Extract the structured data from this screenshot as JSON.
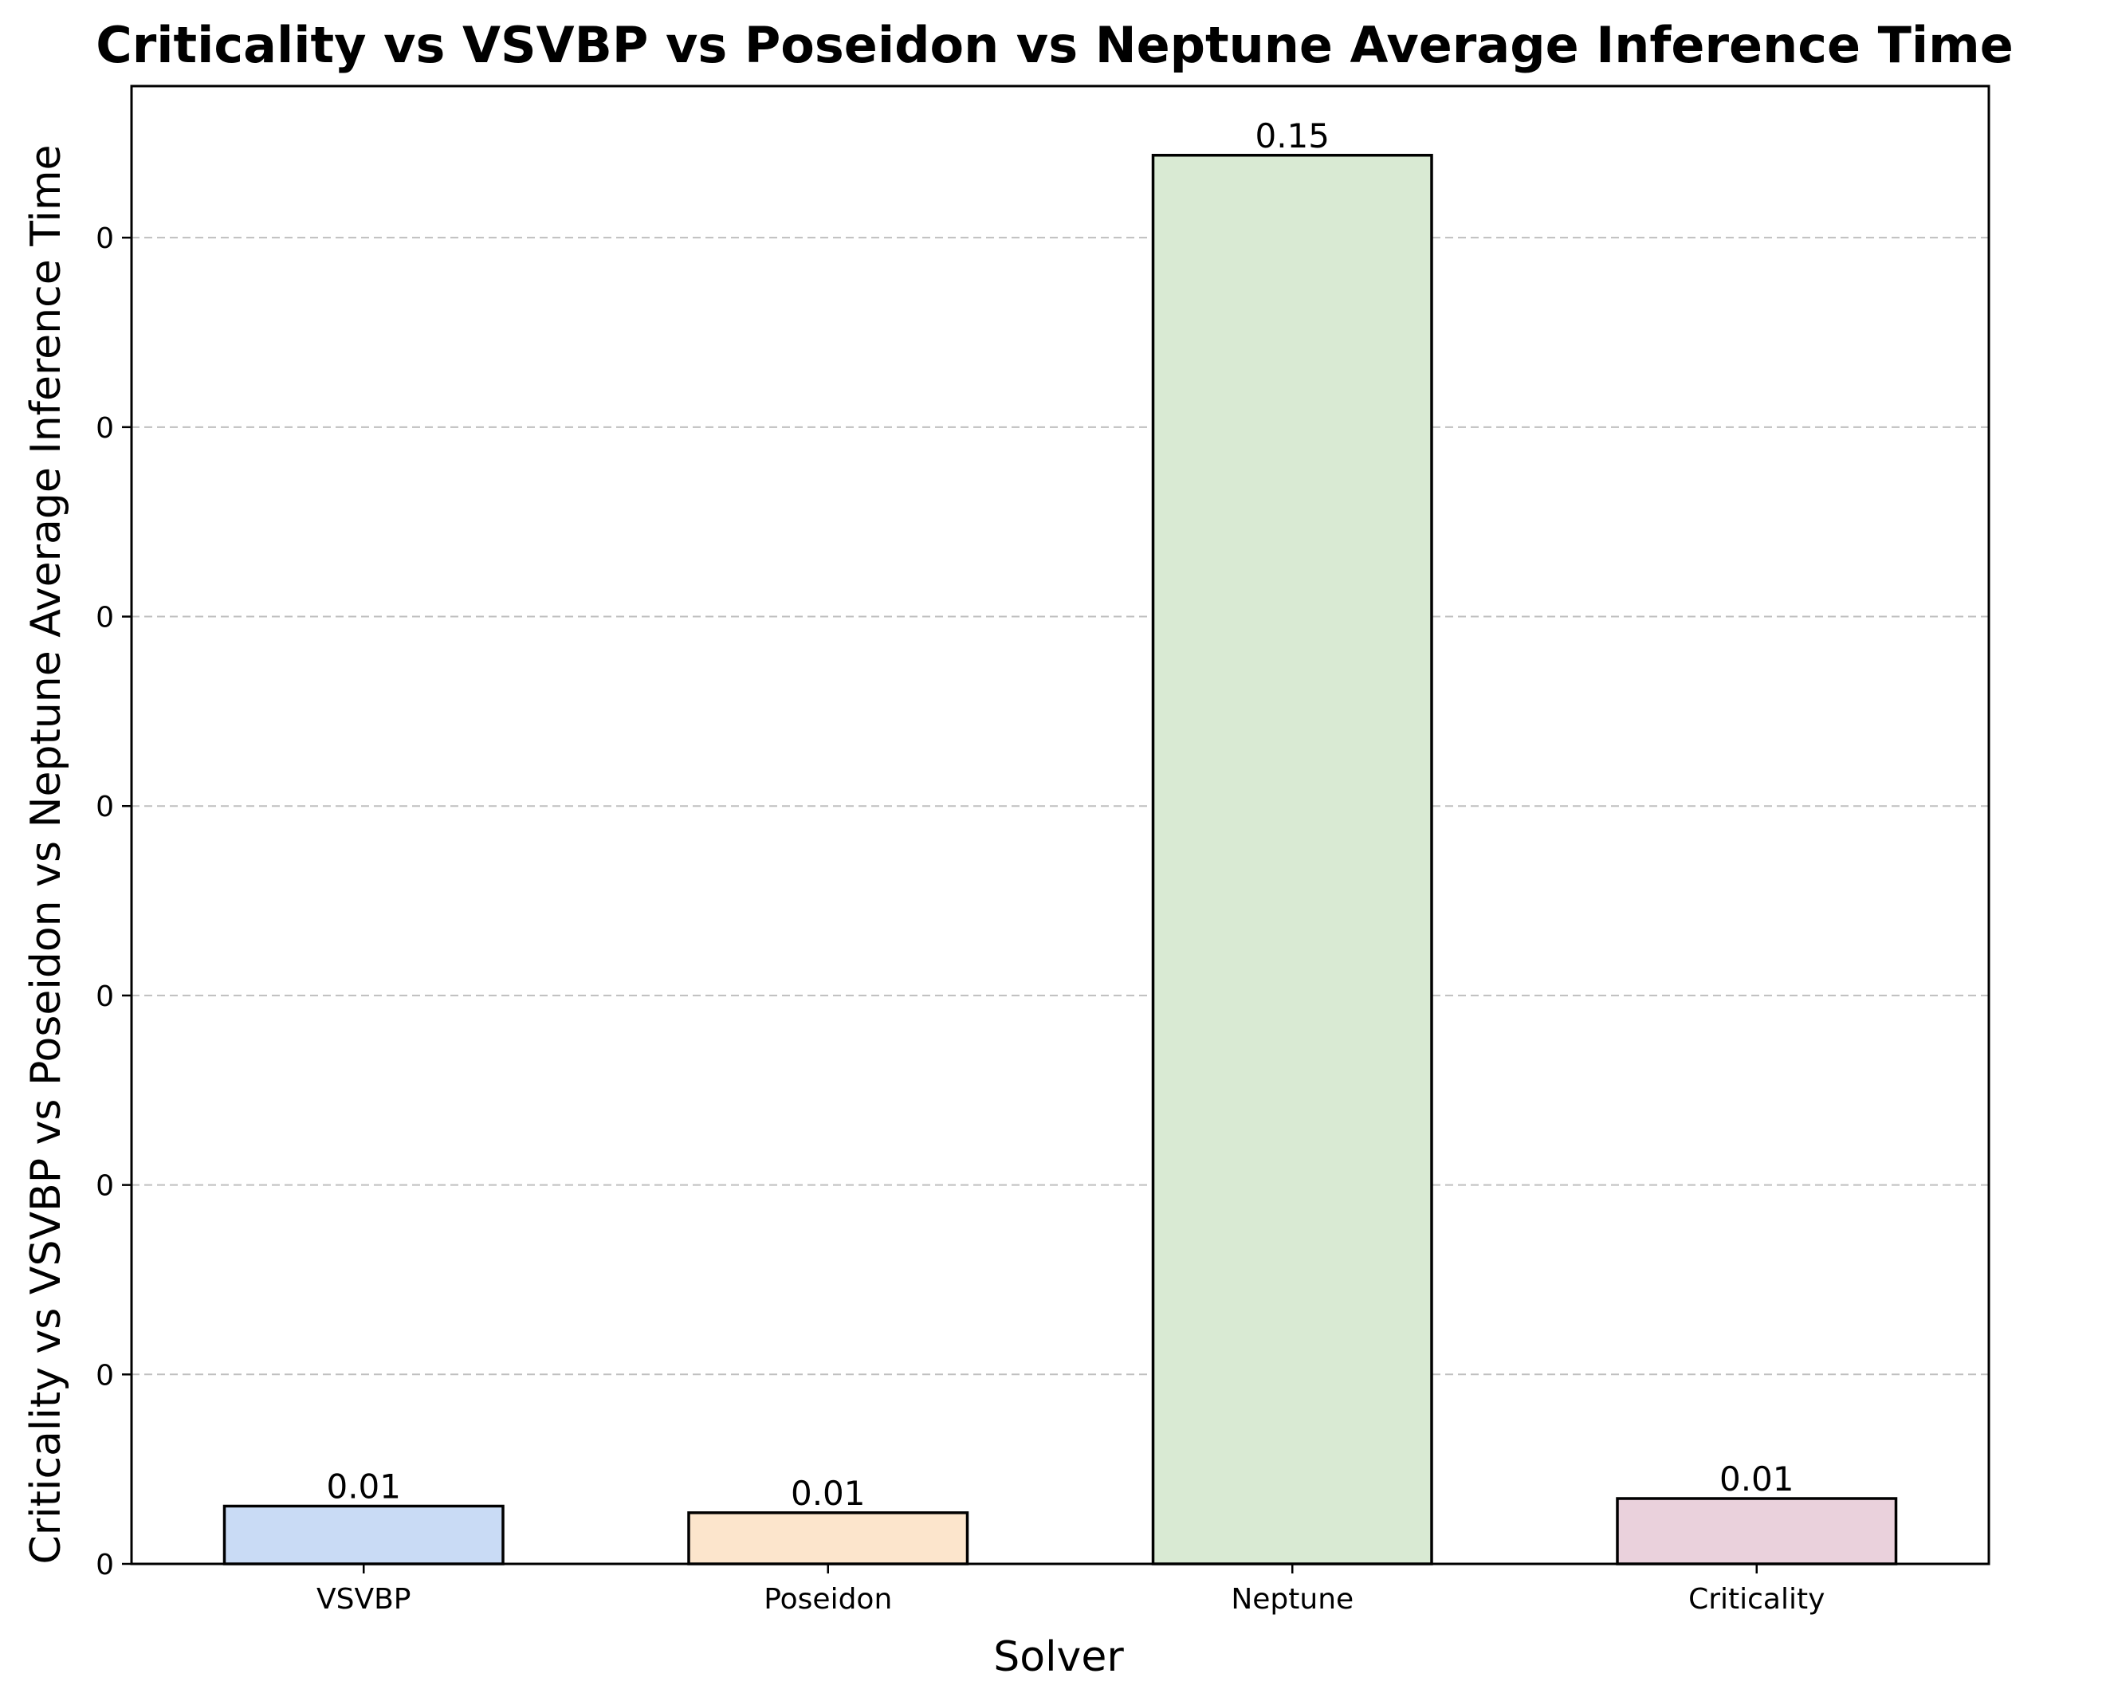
{
  "chart_data": {
    "type": "bar",
    "title": "Criticality vs VSVBP vs Poseidon vs Neptune Average Inference Time",
    "xlabel": "Solver",
    "ylabel": "Criticality vs VSVBP vs Poseidon vs Neptune Average Inference Time",
    "categories": [
      "VSVBP",
      "Poseidon",
      "Neptune",
      "Criticality"
    ],
    "values": [
      0.0061,
      0.0054,
      0.1487,
      0.0069
    ],
    "value_labels": [
      "0.01",
      "0.01",
      "0.15",
      "0.01"
    ],
    "colors": [
      "#c9dbf5",
      "#fce5cc",
      "#d9ead3",
      "#ead1dc"
    ],
    "ylim": [
      0,
      0.156
    ],
    "yticks": [
      0,
      0.02,
      0.04,
      0.06,
      0.08,
      0.1,
      0.12,
      0.14
    ],
    "ytick_labels": [
      "0",
      "0",
      "0",
      "0",
      "0",
      "0",
      "0",
      "0"
    ],
    "grid": "y-dashed",
    "legend": "none"
  }
}
